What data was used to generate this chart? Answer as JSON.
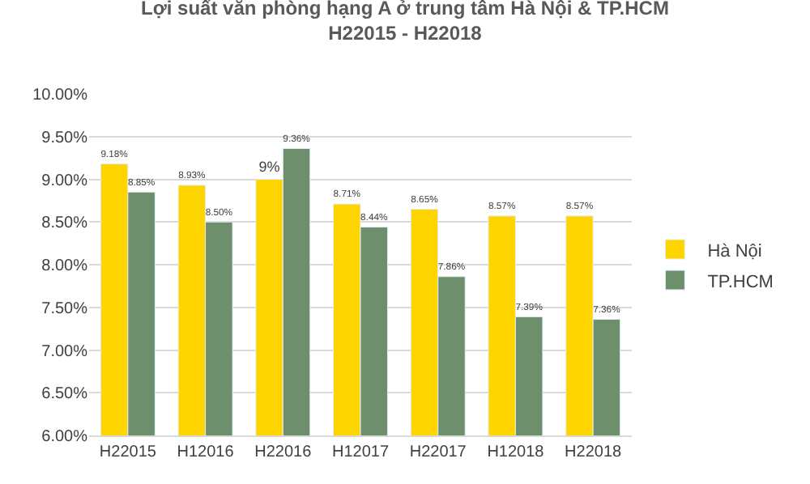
{
  "chart_data": {
    "type": "bar",
    "title": "Lợi suất văn phòng hạng A ở trung tâm Hà Nội & TP.HCM\nH22015 - H22018",
    "categories": [
      "H22015",
      "H12016",
      "H22016",
      "H12017",
      "H22017",
      "H12018",
      "H22018"
    ],
    "series": [
      {
        "name": "Hà Nội",
        "color": "#ffd500",
        "values": [
          9.18,
          8.93,
          9,
          8.71,
          8.65,
          8.57,
          8.57
        ],
        "value_labels": [
          "9.18%",
          "8.93%",
          "9%",
          "8.71%",
          "8.65%",
          "8.57%",
          "8.57%"
        ]
      },
      {
        "name": "TP.HCM",
        "color": "#6e8f6c",
        "values": [
          8.85,
          8.5,
          9.36,
          8.44,
          7.86,
          7.39,
          7.36
        ],
        "value_labels": [
          "8.85%",
          "8.50%",
          "9.36%",
          "8.44%",
          "7.86%",
          "7.39%",
          "7.36%"
        ]
      }
    ],
    "ylim": [
      6,
      10
    ],
    "yticks": [
      {
        "value": 6,
        "label": "6.00%"
      },
      {
        "value": 6.5,
        "label": "6.50%"
      },
      {
        "value": 7,
        "label": "7.00%"
      },
      {
        "value": 7.5,
        "label": "7.50%"
      },
      {
        "value": 8,
        "label": "8.00%"
      },
      {
        "value": 8.5,
        "label": "8.50%"
      },
      {
        "value": 9,
        "label": "9.00%"
      },
      {
        "value": 9.5,
        "label": "9.50%"
      },
      {
        "value": 10,
        "label": "10.00%"
      }
    ],
    "grid": "y",
    "legend": "right"
  }
}
